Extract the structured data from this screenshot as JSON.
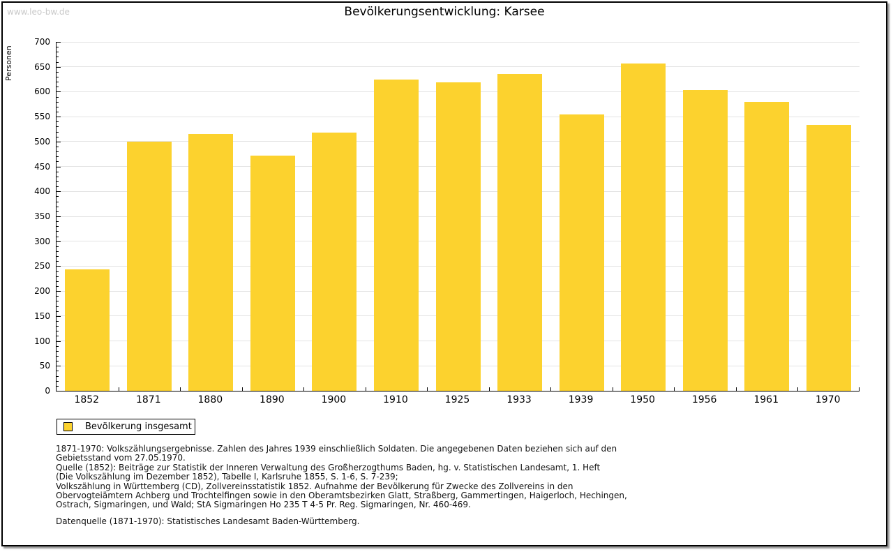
{
  "page": {
    "watermark": "www.leo-bw.de",
    "title": "Bevölkerungsentwicklung: Karsee"
  },
  "chart_data": {
    "type": "bar",
    "title": "Bevölkerungsentwicklung: Karsee",
    "xlabel": "",
    "ylabel": "Personen",
    "categories": [
      "1852",
      "1871",
      "1880",
      "1890",
      "1900",
      "1910",
      "1925",
      "1933",
      "1939",
      "1950",
      "1956",
      "1961",
      "1970"
    ],
    "values": [
      244,
      500,
      515,
      472,
      518,
      625,
      619,
      635,
      555,
      657,
      604,
      580,
      533
    ],
    "series_name": "Bevölkerung insgesamt",
    "ylim": [
      0,
      700
    ],
    "ytick_step": 50,
    "ytick_minor_step": 10,
    "grid": true,
    "legend_position": "bottom-left",
    "bar_color": "#FCD22E",
    "grid_color": "#E3E3E3",
    "axis_color": "#000000"
  },
  "legend": {
    "label": "Bevölkerung insgesamt"
  },
  "footnotes": {
    "lines": [
      "1871-1970: Volkszählungsergebnisse. Zahlen des Jahres 1939 einschließlich Soldaten. Die angegebenen Daten beziehen sich auf den",
      "Gebietsstand vom 27.05.1970.",
      "Quelle (1852): Beiträge zur Statistik der Inneren Verwaltung des Großherzogthums Baden, hg. v. Statistischen Landesamt, 1. Heft",
      "(Die Volkszählung im Dezember 1852), Tabelle I, Karlsruhe 1855, S. 1-6, S. 7-239;",
      "Volkszählung in Württemberg (CD), Zollvereinsstatistik 1852. Aufnahme der Bevölkerung für Zwecke des Zollvereins in den",
      "Obervogteiämtern Achberg und Trochtelfingen sowie in den Oberamtsbezirken Glatt, Straßberg, Gammertingen, Haigerloch, Hechingen,",
      "Ostrach, Sigmaringen, und Wald; StA Sigmaringen Ho 235 T 4-5 Pr. Reg. Sigmaringen, Nr. 460-469."
    ],
    "datasource": "Datenquelle (1871-1970): Statistisches Landesamt Baden-Württemberg."
  }
}
